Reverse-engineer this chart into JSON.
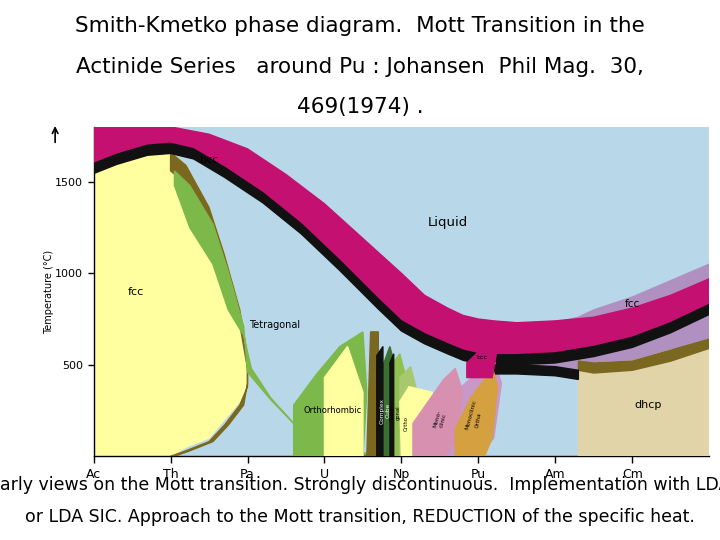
{
  "title_line1": "Smith-Kmetko phase diagram.  Mott Transition in the",
  "title_line2": "Actinide Series   around Pu : Johansen  Phil Mag.  30,",
  "title_line3": "469(1974) .",
  "footer_line1": "Early views on the Mott transition. Strongly discontinuous.  Implementation with LDA",
  "footer_line2": "or LDA SIC. Approach to the Mott transition, REDUCTION of the specific heat.",
  "title_fontsize": 15.5,
  "footer_fontsize": 12.5,
  "bg_color": "#ffffff",
  "diagram_bg": "#b8d8ea",
  "elements": [
    "Ac",
    "Th",
    "Pa",
    "U",
    "Np",
    "Pu",
    "Am",
    "Cm"
  ],
  "yticks": [
    500,
    1000,
    1500
  ],
  "ylabel": "Temperature (°C)",
  "color_fcc_left": "#ffffa0",
  "color_bcc": "#c41071",
  "color_tetragonal": "#7db84a",
  "color_orthorhombic": "#7db84a",
  "color_fcc_right": "#b090c0",
  "color_dhcp": "#e0d4a8",
  "color_complex_cube": "#3a7030",
  "color_tetragonal2": "#90c050",
  "color_ortho2": "#a8c870",
  "color_monoclinic1": "#d890b0",
  "color_monoclinic2": "#c898c8",
  "color_ortha": "#d4a040",
  "color_bcc_pu": "#c41071",
  "color_brown": "#7a6820",
  "color_black": "#111111",
  "color_yellow_small": "#ffffa0"
}
